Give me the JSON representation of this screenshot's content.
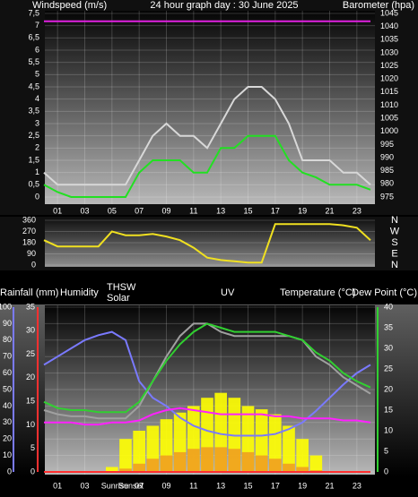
{
  "chart_data": [
    {
      "type": "line",
      "title": "24 hour graph day : 30 June 2025",
      "y_label": "Windspeed (m/s)",
      "y2_label": "Barometer (hpa)",
      "x": [
        0,
        1,
        2,
        3,
        4,
        5,
        6,
        7,
        8,
        9,
        10,
        11,
        12,
        13,
        14,
        15,
        16,
        17,
        18,
        19,
        20,
        21,
        22,
        23,
        24
      ],
      "xlim": [
        0,
        24
      ],
      "xticks": [
        {
          "value": 1,
          "label": "01"
        },
        {
          "value": 3,
          "label": "03"
        },
        {
          "value": 5,
          "label": "05"
        },
        {
          "value": 7,
          "label": "07"
        },
        {
          "value": 9,
          "label": "09"
        },
        {
          "value": 11,
          "label": "11"
        },
        {
          "value": 13,
          "label": "13"
        },
        {
          "value": 15,
          "label": "15"
        },
        {
          "value": 17,
          "label": "17"
        },
        {
          "value": 19,
          "label": "19"
        },
        {
          "value": 21,
          "label": "21"
        },
        {
          "value": 23,
          "label": "23"
        }
      ],
      "ylim": [
        0,
        7.5
      ],
      "yticks": [
        0,
        {
          "value": 0.5,
          "label": "0,5"
        },
        1,
        {
          "value": 1.5,
          "label": "1,5"
        },
        2,
        {
          "value": 2.5,
          "label": "2,5"
        },
        3,
        {
          "value": 3.5,
          "label": "3,5"
        },
        4,
        {
          "value": 4.5,
          "label": "4,5"
        },
        5,
        {
          "value": 5.5,
          "label": "5,5"
        },
        6,
        {
          "value": 6.5,
          "label": "6,5"
        },
        7,
        {
          "value": 7.5,
          "label": "7,5"
        }
      ],
      "y2lim": [
        975,
        1045
      ],
      "y2ticks": [
        975,
        980,
        985,
        990,
        995,
        1000,
        1005,
        1010,
        1015,
        1020,
        1025,
        1030,
        1035,
        1040,
        1045
      ],
      "grid": true,
      "series": [
        {
          "color": "#d8d8d8",
          "values": [
            1,
            0.5,
            0.5,
            0.5,
            0.5,
            0.5,
            0.5,
            1.5,
            2.5,
            3,
            2.5,
            2.5,
            2,
            3,
            4,
            4.5,
            4.5,
            4,
            3,
            1.5,
            1.5,
            1.5,
            1,
            1,
            0.5
          ]
        },
        {
          "color": "#22e022",
          "values": [
            0.5,
            0.2,
            0,
            0,
            0,
            0,
            0,
            1,
            1.5,
            1.5,
            1.5,
            1,
            1,
            2,
            2,
            2.5,
            2.5,
            2.5,
            1.5,
            1,
            0.8,
            0.5,
            0.5,
            0.5,
            0.3
          ]
        },
        {
          "color": "#e020e0",
          "axis": "y2",
          "values": [
            1042,
            1042,
            1042,
            1042,
            1042,
            1042,
            1042,
            1042,
            1042,
            1042,
            1042,
            1042,
            1042,
            1042,
            1042,
            1042,
            1042,
            1042,
            1042,
            1042,
            1042,
            1042,
            1042,
            1042,
            1042
          ]
        }
      ]
    },
    {
      "type": "line",
      "x": [
        0,
        1,
        2,
        3,
        4,
        5,
        6,
        7,
        8,
        9,
        10,
        11,
        12,
        13,
        14,
        15,
        16,
        17,
        18,
        19,
        20,
        21,
        22,
        23,
        24
      ],
      "xlim": [
        0,
        24
      ],
      "ylim": [
        0,
        360
      ],
      "yticks": [
        0,
        90,
        180,
        270,
        360
      ],
      "y2lim": [
        0,
        360
      ],
      "y2ticks": [
        {
          "value": 0,
          "label": "N"
        },
        {
          "value": 90,
          "label": "E"
        },
        {
          "value": 180,
          "label": "S"
        },
        {
          "value": 270,
          "label": "W"
        },
        {
          "value": 360,
          "label": "N"
        }
      ],
      "grid": true,
      "series": [
        {
          "color": "#f0e020",
          "values": [
            200,
            150,
            150,
            150,
            150,
            270,
            240,
            240,
            250,
            230,
            200,
            140,
            60,
            40,
            30,
            20,
            20,
            330,
            330,
            330,
            330,
            330,
            320,
            300,
            200
          ]
        }
      ]
    },
    {
      "type": "line",
      "annotations": [
        "Sunrise",
        "Sunset"
      ],
      "x": [
        0,
        1,
        2,
        3,
        4,
        5,
        6,
        7,
        8,
        9,
        10,
        11,
        12,
        13,
        14,
        15,
        16,
        17,
        18,
        19,
        20,
        21,
        22,
        23,
        24
      ],
      "xlim": [
        0,
        24
      ],
      "xticks": [
        {
          "value": 1,
          "label": "01"
        },
        {
          "value": 3,
          "label": "03"
        },
        {
          "value": 7,
          "label": "07"
        },
        {
          "value": 9,
          "label": "09"
        },
        {
          "value": 11,
          "label": "11"
        },
        {
          "value": 13,
          "label": "13"
        },
        {
          "value": 15,
          "label": "15"
        },
        {
          "value": 17,
          "label": "17"
        },
        {
          "value": 19,
          "label": "19"
        },
        {
          "value": 21,
          "label": "21"
        },
        {
          "value": 23,
          "label": "23"
        }
      ],
      "ylim": [
        0,
        100
      ],
      "yticks": [
        0,
        10,
        20,
        30,
        40,
        50,
        60,
        70,
        80,
        90,
        100
      ],
      "y3lim": [
        0,
        35
      ],
      "y3ticks": [
        0,
        5,
        10,
        15,
        20,
        25,
        30,
        35
      ],
      "y2lim": [
        0,
        40
      ],
      "y2ticks": [
        0,
        5,
        10,
        15,
        20,
        25,
        30,
        35,
        40
      ],
      "grid": true,
      "series": [
        {
          "name": "Solar",
          "color": "#ffff00",
          "style": "bars",
          "values": [
            0,
            0,
            0,
            0,
            0,
            3,
            20,
            25,
            28,
            32,
            36,
            40,
            45,
            48,
            45,
            40,
            38,
            35,
            28,
            20,
            10,
            0,
            0,
            0,
            0
          ]
        },
        {
          "name": "UV",
          "color": "#f0a020",
          "style": "bars",
          "values": [
            0,
            0,
            0,
            0,
            0,
            0,
            2,
            5,
            8,
            10,
            12,
            14,
            15,
            15,
            14,
            12,
            10,
            8,
            5,
            3,
            1,
            0,
            0,
            0,
            0
          ]
        },
        {
          "name": "Rainfall (mm)",
          "color": "#ff3030",
          "axis": "y3",
          "values": [
            0,
            0,
            0,
            0,
            0,
            0,
            0,
            0,
            0,
            0,
            0,
            0,
            0,
            0,
            0,
            0,
            0,
            0,
            0,
            0,
            0,
            0,
            0,
            0,
            0
          ]
        },
        {
          "name": "Humidity",
          "color": "#7a7aff",
          "values": [
            65,
            70,
            75,
            80,
            83,
            85,
            80,
            55,
            45,
            40,
            33,
            28,
            25,
            23,
            22,
            22,
            22,
            23,
            26,
            30,
            37,
            45,
            53,
            60,
            65
          ]
        },
        {
          "name": "THSW",
          "color": "#a0a0a0",
          "axis": "y2",
          "values": [
            15,
            14,
            13.5,
            13.5,
            13,
            13,
            13,
            16,
            22,
            28,
            33,
            36,
            36,
            34,
            33,
            33,
            33,
            33,
            33,
            32,
            28,
            26,
            23,
            21,
            19
          ]
        },
        {
          "name": "Temperature (°C)",
          "color": "#30d030",
          "axis": "y2",
          "values": [
            17,
            15.5,
            15,
            15,
            14.5,
            14.5,
            14.5,
            17,
            22,
            27,
            31,
            34,
            36,
            35,
            34,
            34,
            34,
            34,
            33,
            32,
            29,
            27,
            24,
            22,
            20.5
          ]
        },
        {
          "name": "Dew Point (°C)",
          "color": "#ff20ff",
          "axis": "y2",
          "values": [
            12,
            12,
            12,
            11.5,
            11.5,
            12,
            12,
            12.5,
            14,
            15,
            15.5,
            15,
            14.5,
            14,
            14,
            14,
            14,
            13.5,
            13.5,
            13,
            13,
            13,
            12.5,
            12.5,
            12
          ]
        }
      ]
    }
  ]
}
